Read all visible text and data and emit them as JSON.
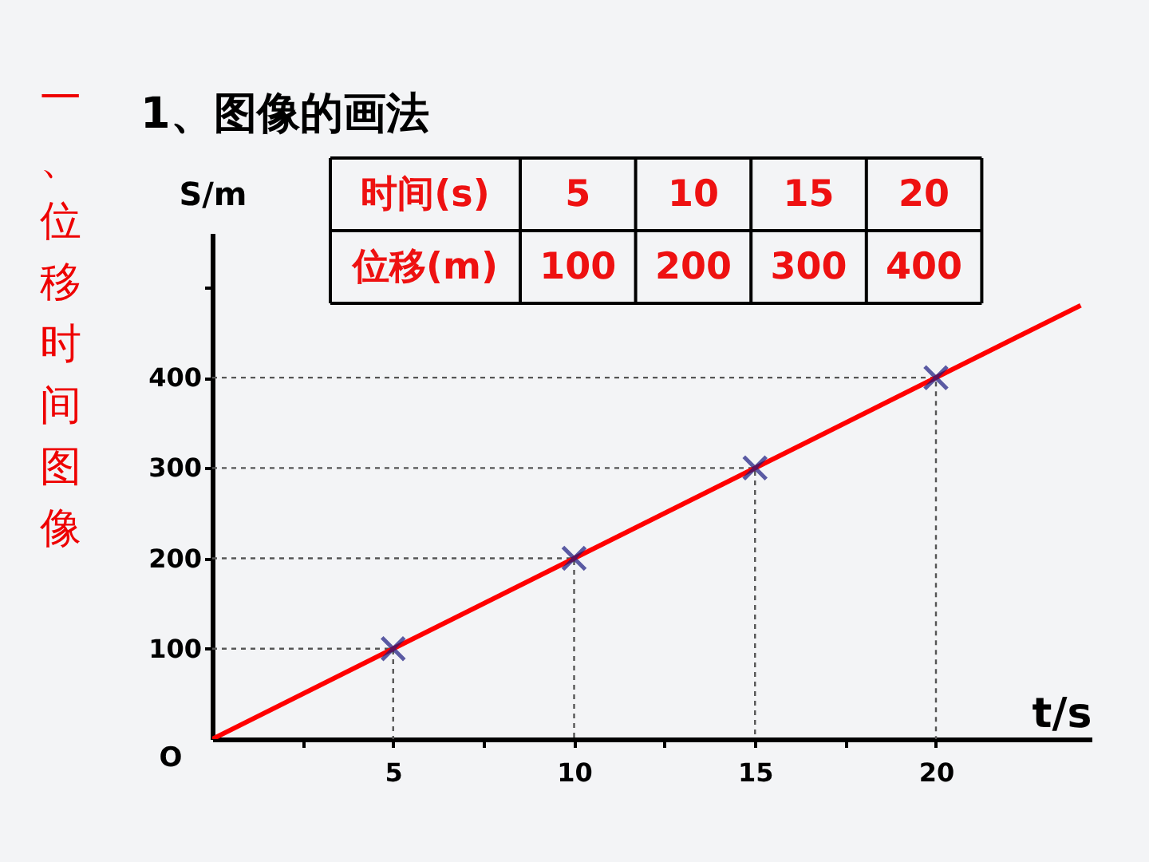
{
  "chart_data": {
    "type": "line",
    "title": "一、位移时间图像",
    "subtitle": "1、图像的画法",
    "xlabel": "t/s",
    "ylabel": "S/m",
    "annotations": [
      {
        "text": "O",
        "x": 0,
        "y": 0
      },
      "时间(s)",
      "5",
      "10",
      "15",
      "20",
      "位移(m)",
      "100",
      "200",
      "300",
      "400"
    ],
    "xlim": [
      0,
      24.3
    ],
    "ylim": [
      0,
      560
    ],
    "xticks": [
      {
        "value": 2.5,
        "label": null
      },
      5,
      {
        "value": 7.5,
        "label": null
      },
      10,
      {
        "value": 12.5,
        "label": null
      },
      15,
      {
        "value": 17.5,
        "label": null
      },
      20
    ],
    "yticks": [
      100,
      200,
      300,
      400,
      {
        "value": 500,
        "label": null
      }
    ],
    "grid": false,
    "series": [
      {
        "color": "#555555",
        "x": [
          0,
          5,
          5
        ],
        "values": [
          100,
          100,
          0
        ],
        "line_style": "dashed",
        "marker": "none"
      },
      {
        "color": "#555555",
        "x": [
          0,
          10,
          10
        ],
        "values": [
          200,
          200,
          0
        ],
        "line_style": "dashed",
        "marker": "none"
      },
      {
        "color": "#555555",
        "x": [
          0,
          15,
          15
        ],
        "values": [
          300,
          300,
          0
        ],
        "line_style": "dashed",
        "marker": "none"
      },
      {
        "color": "#555555",
        "x": [
          0,
          20,
          20
        ],
        "values": [
          400,
          400,
          0
        ],
        "line_style": "dashed",
        "marker": "none"
      },
      {
        "color": "#ff0000",
        "x": [
          0,
          24
        ],
        "values": [
          0,
          480
        ],
        "line_style": "solid",
        "marker": "none"
      },
      {
        "type": "scatter",
        "color": "#1a1a80",
        "x": [
          5,
          10,
          15,
          20
        ],
        "values": [
          100,
          200,
          300,
          400
        ],
        "marker": "cross"
      }
    ]
  }
}
